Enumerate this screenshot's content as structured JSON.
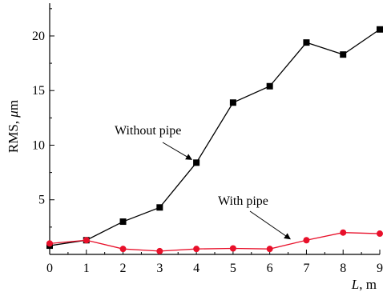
{
  "chart_data": {
    "type": "line",
    "x": [
      0,
      1,
      2,
      3,
      4,
      5,
      6,
      7,
      8,
      9
    ],
    "xlim": [
      0,
      9
    ],
    "ylim": [
      0,
      23
    ],
    "xticks": [
      "0",
      "1",
      "2",
      "3",
      "4",
      "5",
      "6",
      "7",
      "8",
      "9"
    ],
    "yticks": [
      "5",
      "10",
      "15",
      "20"
    ],
    "xlabel_italic": "L",
    "xlabel_rest": ", m",
    "ylabel_prefix": "RMS, ",
    "ylabel_italic": "μ",
    "ylabel_suffix": "m",
    "grid": false,
    "series": [
      {
        "name": "Without pipe",
        "color": "#000000",
        "marker": "square",
        "values": [
          0.8,
          1.3,
          3.0,
          4.3,
          8.4,
          13.9,
          15.4,
          19.4,
          18.3,
          20.6
        ]
      },
      {
        "name": "With pipe",
        "color": "#e8102a",
        "marker": "circle",
        "values": [
          1.0,
          1.3,
          0.5,
          0.3,
          0.5,
          0.55,
          0.5,
          1.3,
          2.0,
          1.9
        ]
      }
    ],
    "annotations": [
      {
        "text": "Without pipe",
        "series": 0,
        "arrow_to_x": 4
      },
      {
        "text": "With pipe",
        "series": 1,
        "arrow_to_x": 6.6
      }
    ]
  }
}
